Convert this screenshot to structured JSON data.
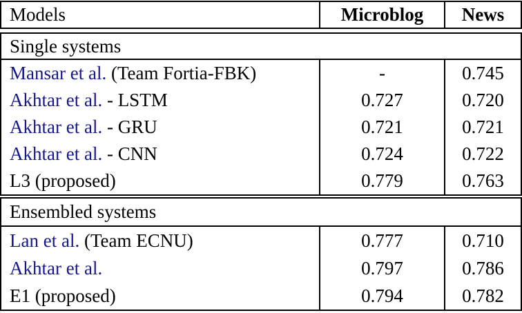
{
  "table": {
    "colors": {
      "citation": "#16168d",
      "border": "#000000",
      "background": "#ffffff"
    },
    "columns": [
      {
        "label": "Models"
      },
      {
        "label": "Microblog"
      },
      {
        "label": "News"
      }
    ],
    "sections": [
      {
        "label": "Single systems",
        "rows": [
          {
            "model_link": "Mansar et al.",
            "model_rest": " (Team Fortia-FBK)",
            "microblog": "-",
            "news": "0.745"
          },
          {
            "model_link": "Akhtar et al.",
            "model_rest": " - LSTM",
            "microblog": "0.727",
            "news": "0.720"
          },
          {
            "model_link": "Akhtar et al.",
            "model_rest": " - GRU",
            "microblog": "0.721",
            "news": "0.721"
          },
          {
            "model_link": "Akhtar et al.",
            "model_rest": " - CNN",
            "microblog": "0.724",
            "news": "0.722"
          },
          {
            "model_link": "",
            "model_rest": "L3 (proposed)",
            "microblog": "0.779",
            "news": "0.763"
          }
        ]
      },
      {
        "label": "Ensembled systems",
        "rows": [
          {
            "model_link": "Lan et al.",
            "model_rest": " (Team ECNU)",
            "microblog": "0.777",
            "news": "0.710"
          },
          {
            "model_link": "Akhtar et al.",
            "model_rest": "",
            "microblog": "0.797",
            "news": "0.786"
          },
          {
            "model_link": "",
            "model_rest": "E1 (proposed)",
            "microblog": "0.794",
            "news": "0.782"
          }
        ]
      }
    ]
  }
}
